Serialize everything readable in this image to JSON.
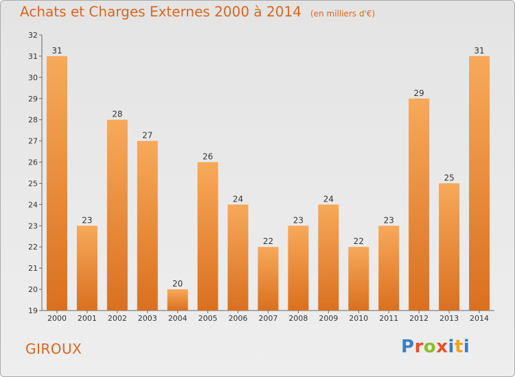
{
  "header": {
    "title": "Achats et Charges Externes 2000 à 2014",
    "subtitle": "(en milliers d'€)"
  },
  "footer": {
    "commune": "GIROUX",
    "logo": {
      "letters": [
        "P",
        "r",
        "o",
        "x",
        "i",
        "t",
        "i"
      ],
      "colors": [
        "#3c7fc4",
        "#e8502a",
        "#8cbb2b",
        "#e8502a",
        "#3c7fc4",
        "#f0a21c",
        "#3c7fc4"
      ]
    }
  },
  "colors": {
    "bar_light": "#f7a95a",
    "bar_dark": "#d9701f",
    "text": "#333333",
    "accent": "#d9661f"
  },
  "chart_data": {
    "type": "bar",
    "title": "Achats et Charges Externes 2000 à 2014",
    "subtitle": "(en milliers d'€)",
    "categories": [
      "2000",
      "2001",
      "2002",
      "2003",
      "2004",
      "2005",
      "2006",
      "2007",
      "2008",
      "2009",
      "2010",
      "2011",
      "2012",
      "2013",
      "2014"
    ],
    "values": [
      31,
      23,
      28,
      27,
      20,
      26,
      24,
      22,
      23,
      24,
      22,
      23,
      29,
      25,
      31
    ],
    "ylim": [
      19,
      32
    ],
    "yticks": [
      19,
      20,
      21,
      22,
      23,
      24,
      25,
      26,
      27,
      28,
      29,
      30,
      31,
      32
    ],
    "grid": false,
    "data_labels": true
  }
}
